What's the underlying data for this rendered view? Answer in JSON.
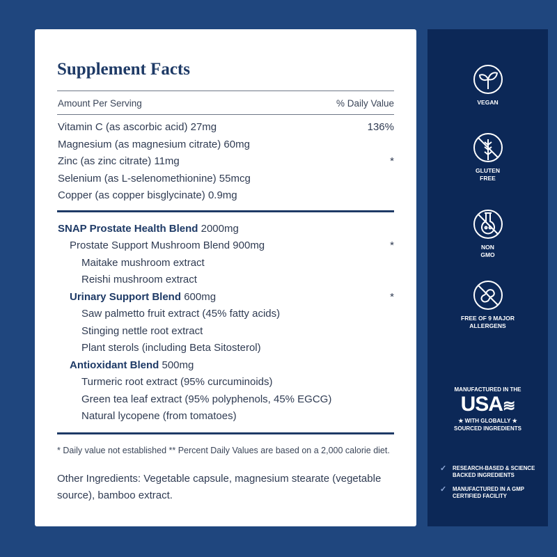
{
  "facts": {
    "title": "Supplement Facts",
    "amount_header": "Amount Per Serving",
    "dv_header": "% Daily Value",
    "nutrients": [
      {
        "name": "Vitamin C (as ascorbic acid) 27mg",
        "dv": "136%"
      },
      {
        "name": "Magnesium (as magnesium citrate) 60mg",
        "dv": ""
      },
      {
        "name": "Zinc (as zinc citrate) 11mg",
        "dv": "*"
      },
      {
        "name": "Selenium (as L-selenomethionine) 55mcg",
        "dv": ""
      },
      {
        "name": "Copper (as copper bisglycinate) 0.9mg",
        "dv": ""
      }
    ],
    "blend": {
      "name": "SNAP Prostate Health Blend",
      "amount": "2000mg"
    },
    "sub": [
      {
        "name": "Prostate Support Mushroom Blend 900mg",
        "amount": "",
        "dv": "*",
        "level": 1,
        "bold": false
      },
      {
        "name": "Maitake mushroom extract",
        "amount": "",
        "dv": "",
        "level": 2,
        "bold": false
      },
      {
        "name": "Reishi mushroom extract",
        "amount": "",
        "dv": "",
        "level": 2,
        "bold": false
      },
      {
        "name": "Urinary Support Blend",
        "amount": "600mg",
        "dv": "*",
        "level": 1,
        "bold": true
      },
      {
        "name": "Saw palmetto fruit extract (45% fatty acids)",
        "amount": "",
        "dv": "",
        "level": 2,
        "bold": false
      },
      {
        "name": "Stinging nettle root extract",
        "amount": "",
        "dv": "",
        "level": 2,
        "bold": false
      },
      {
        "name": "Plant sterols (including Beta Sitosterol)",
        "amount": "",
        "dv": "",
        "level": 2,
        "bold": false
      },
      {
        "name": "Antioxidant Blend",
        "amount": "500mg",
        "dv": "",
        "level": 1,
        "bold": true
      },
      {
        "name": "Turmeric root extract (95% curcuminoids)",
        "amount": "",
        "dv": "",
        "level": 2,
        "bold": false
      },
      {
        "name": "Green tea leaf extract (95% polyphenols, 45% EGCG)",
        "amount": "",
        "dv": "",
        "level": 2,
        "bold": false
      },
      {
        "name": "Natural lycopene (from tomatoes)",
        "amount": "",
        "dv": "",
        "level": 2,
        "bold": false
      }
    ],
    "footnote": "* Daily value not established ** Percent Daily Values are based on a 2,000 calorie diet.",
    "other": "Other Ingredients: Vegetable capsule, magnesium stearate (vegetable source), bamboo extract."
  },
  "badges": [
    {
      "icon": "leaf-icon",
      "l1": "VEGAN",
      "l2": ""
    },
    {
      "icon": "wheat-crossed-icon",
      "l1": "GLUTEN",
      "l2": "FREE"
    },
    {
      "icon": "flask-crossed-icon",
      "l1": "NON",
      "l2": "GMO"
    },
    {
      "icon": "peanut-crossed-icon",
      "l1": "FREE OF 9 MAJOR",
      "l2": "ALLERGENS"
    }
  ],
  "usa": {
    "top": "MANUFACTURED IN THE",
    "big": "USA",
    "l1": "★ WITH GLOBALLY ★",
    "l2": "SOURCED INGREDIENTS"
  },
  "checks": [
    {
      "l1": "RESEARCH-BASED & SCIENCE",
      "l2": "BACKED INGREDIENTS"
    },
    {
      "l1": "MANUFACTURED IN A GMP",
      "l2": "CERTIFIED FACILITY"
    }
  ],
  "colors": {
    "background": "#1f467e",
    "panel": "#0c2857",
    "navy": "#1e3a66"
  }
}
